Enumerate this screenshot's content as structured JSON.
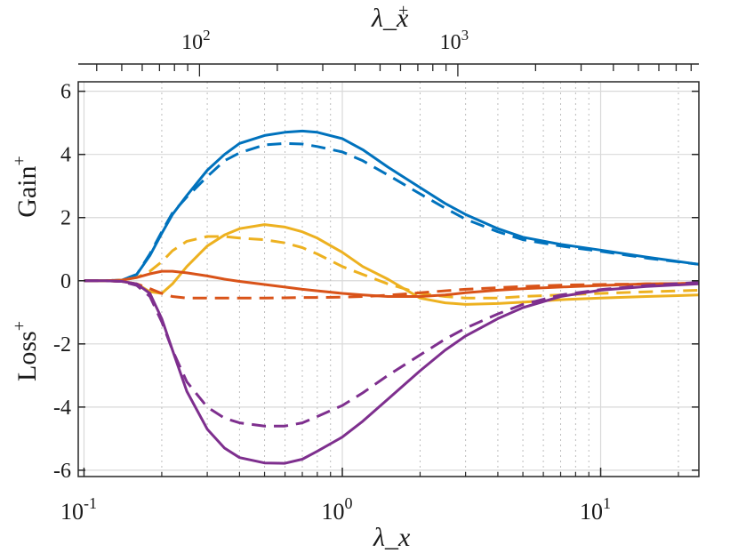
{
  "chart_data": {
    "type": "line",
    "title": "",
    "xlabel": "λ_x",
    "xscale": "log",
    "xlim": [
      0.095,
      24
    ],
    "ylim": [
      -6.2,
      6.3
    ],
    "ylabel_top": "Gain",
    "ylabel_bottom": "Loss",
    "ylabel_sup": "+",
    "yticks": [
      {
        "value": 6,
        "label": "6"
      },
      {
        "value": 4,
        "label": "4"
      },
      {
        "value": 2,
        "label": "2"
      },
      {
        "value": 0,
        "label": "0"
      },
      {
        "value": -2,
        "label": "-2"
      },
      {
        "value": -4,
        "label": "-4"
      },
      {
        "value": -6,
        "label": "-6"
      }
    ],
    "xticks_bottom": [
      {
        "value": 0.1,
        "base": "10",
        "exp": "-1"
      },
      {
        "value": 1,
        "base": "10",
        "exp": "0"
      },
      {
        "value": 10,
        "base": "10",
        "exp": "1"
      }
    ],
    "top_axis": {
      "label": "λ_x",
      "label_sup": "+",
      "ticks": [
        {
          "value": 0.28,
          "base": "10",
          "exp": "2"
        },
        {
          "value": 2.8,
          "base": "10",
          "exp": "3"
        }
      ]
    },
    "minor_grid_x": [
      0.2,
      0.3,
      0.4,
      0.5,
      0.6,
      0.7,
      0.8,
      0.9,
      2,
      3,
      4,
      5,
      6,
      7,
      8,
      9,
      20
    ],
    "grid": true,
    "x": [
      0.1,
      0.12,
      0.14,
      0.16,
      0.18,
      0.2,
      0.22,
      0.25,
      0.3,
      0.35,
      0.4,
      0.5,
      0.6,
      0.7,
      0.8,
      1,
      1.2,
      1.5,
      2,
      2.5,
      3,
      4,
      5,
      7,
      10,
      15,
      24
    ],
    "series": [
      {
        "name": "blue-solid",
        "color": "#0072BD",
        "dash": "solid",
        "values": [
          0,
          0,
          0.02,
          0.2,
          0.8,
          1.5,
          2.1,
          2.7,
          3.5,
          4.0,
          4.35,
          4.6,
          4.7,
          4.74,
          4.7,
          4.5,
          4.15,
          3.6,
          2.95,
          2.45,
          2.1,
          1.65,
          1.38,
          1.15,
          0.97,
          0.75,
          0.52
        ]
      },
      {
        "name": "blue-dashed",
        "color": "#0072BD",
        "dash": "dashed",
        "values": [
          0,
          0,
          0.02,
          0.2,
          0.85,
          1.55,
          2.15,
          2.65,
          3.3,
          3.8,
          4.05,
          4.3,
          4.35,
          4.33,
          4.25,
          4.08,
          3.8,
          3.35,
          2.75,
          2.3,
          1.95,
          1.55,
          1.3,
          1.1,
          0.93,
          0.72,
          0.52
        ]
      },
      {
        "name": "yellow-solid",
        "color": "#EDB120",
        "dash": "solid",
        "values": [
          0,
          0,
          -0.02,
          -0.1,
          -0.35,
          -0.4,
          -0.1,
          0.45,
          1.1,
          1.45,
          1.65,
          1.78,
          1.7,
          1.55,
          1.35,
          0.9,
          0.45,
          0.05,
          -0.55,
          -0.7,
          -0.75,
          -0.72,
          -0.68,
          -0.6,
          -0.55,
          -0.5,
          -0.45
        ]
      },
      {
        "name": "yellow-dashed",
        "color": "#EDB120",
        "dash": "dashed",
        "values": [
          0,
          0,
          0.02,
          0.1,
          0.3,
          0.6,
          0.95,
          1.25,
          1.4,
          1.4,
          1.35,
          1.3,
          1.2,
          1.05,
          0.85,
          0.45,
          0.2,
          -0.1,
          -0.4,
          -0.5,
          -0.55,
          -0.55,
          -0.5,
          -0.45,
          -0.4,
          -0.35,
          -0.3
        ]
      },
      {
        "name": "red-solid",
        "color": "#D95319",
        "dash": "solid",
        "values": [
          0,
          0,
          0.02,
          0.1,
          0.22,
          0.3,
          0.3,
          0.25,
          0.15,
          0.05,
          -0.02,
          -0.12,
          -0.2,
          -0.27,
          -0.32,
          -0.4,
          -0.45,
          -0.5,
          -0.5,
          -0.45,
          -0.38,
          -0.3,
          -0.25,
          -0.2,
          -0.15,
          -0.1,
          -0.08
        ]
      },
      {
        "name": "red-dashed",
        "color": "#D95319",
        "dash": "dashed",
        "values": [
          0,
          0,
          -0.02,
          -0.1,
          -0.25,
          -0.4,
          -0.5,
          -0.55,
          -0.55,
          -0.55,
          -0.55,
          -0.55,
          -0.54,
          -0.53,
          -0.53,
          -0.52,
          -0.5,
          -0.46,
          -0.38,
          -0.32,
          -0.27,
          -0.22,
          -0.18,
          -0.14,
          -0.12,
          -0.1,
          -0.08
        ]
      },
      {
        "name": "purple-solid",
        "color": "#7E2F8E",
        "dash": "solid",
        "values": [
          0,
          0,
          -0.02,
          -0.1,
          -0.4,
          -1.2,
          -2.2,
          -3.5,
          -4.7,
          -5.3,
          -5.6,
          -5.77,
          -5.78,
          -5.65,
          -5.4,
          -4.95,
          -4.45,
          -3.75,
          -2.85,
          -2.2,
          -1.75,
          -1.2,
          -0.85,
          -0.5,
          -0.3,
          -0.18,
          -0.1
        ]
      },
      {
        "name": "purple-dashed",
        "color": "#7E2F8E",
        "dash": "dashed",
        "values": [
          0,
          0,
          -0.02,
          -0.15,
          -0.5,
          -1.3,
          -2.2,
          -3.2,
          -4.0,
          -4.35,
          -4.5,
          -4.6,
          -4.6,
          -4.5,
          -4.3,
          -3.95,
          -3.55,
          -3.0,
          -2.35,
          -1.85,
          -1.5,
          -1.05,
          -0.75,
          -0.45,
          -0.28,
          -0.15,
          -0.05
        ]
      }
    ]
  }
}
